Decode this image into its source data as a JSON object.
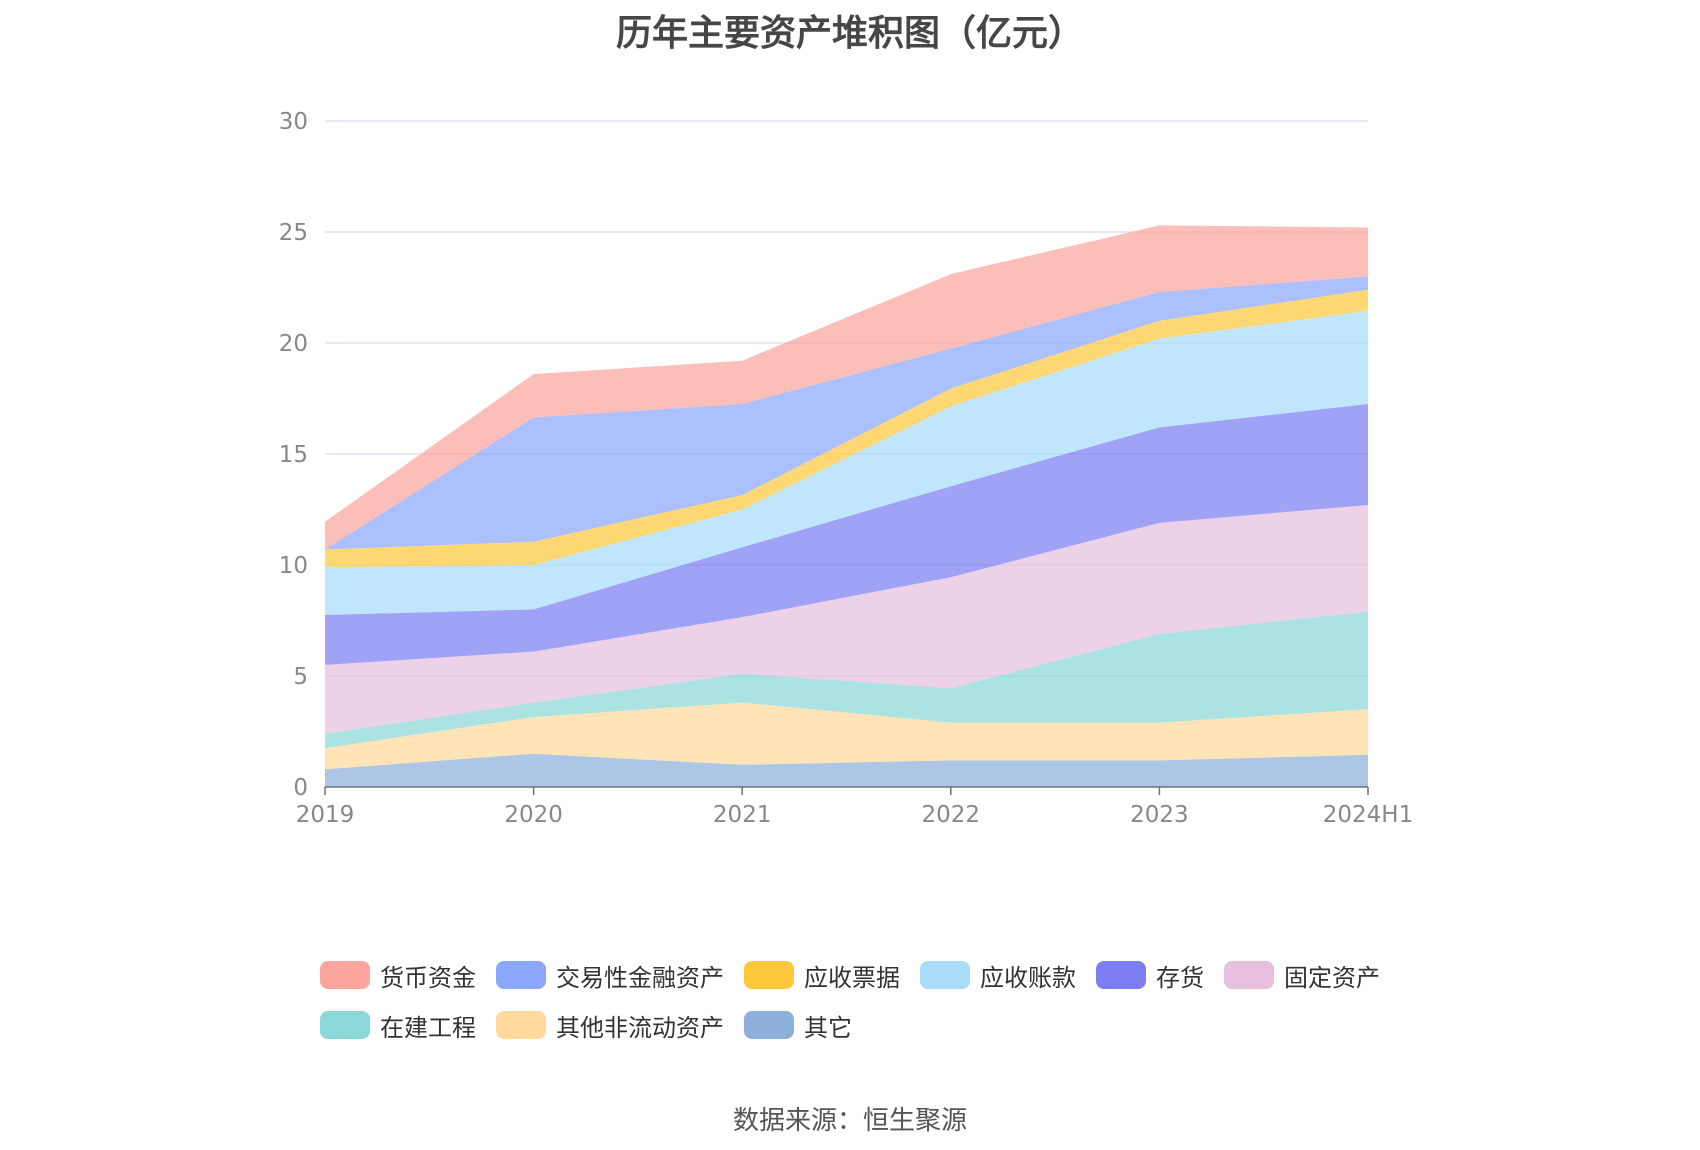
{
  "source": "数据来源：恒生聚源",
  "chart_data": {
    "type": "area",
    "stacked": true,
    "title": "历年主要资产堆积图（亿元）",
    "xlabel": "",
    "ylabel": "",
    "ylim": [
      0,
      30
    ],
    "yticks": [
      "0",
      "5",
      "10",
      "15",
      "20",
      "25",
      "30"
    ],
    "grid": true,
    "legend_position": "bottom",
    "categories": [
      "2019",
      "2020",
      "2021",
      "2022",
      "2023",
      "2024H1"
    ],
    "series": [
      {
        "name": "其它",
        "color": "#8fb0dc",
        "values": [
          0.8,
          1.5,
          1.0,
          1.2,
          1.2,
          1.45
        ]
      },
      {
        "name": "其他非流动资产",
        "color": "#ffd99b",
        "values": [
          0.95,
          1.65,
          2.8,
          1.7,
          1.7,
          2.05
        ]
      },
      {
        "name": "在建工程",
        "color": "#8ad8d8",
        "values": [
          0.65,
          0.65,
          1.3,
          1.55,
          4.0,
          4.4
        ]
      },
      {
        "name": "固定资产",
        "color": "#e6bfdd",
        "values": [
          3.1,
          2.3,
          2.55,
          5.0,
          5.0,
          4.8
        ]
      },
      {
        "name": "存货",
        "color": "#7c7ef2",
        "values": [
          2.25,
          1.9,
          3.15,
          4.1,
          4.3,
          4.55
        ]
      },
      {
        "name": "应收账款",
        "color": "#a8dcf9",
        "values": [
          2.15,
          2.0,
          1.7,
          3.6,
          4.0,
          4.2
        ]
      },
      {
        "name": "应收票据",
        "color": "#ffc83d",
        "values": [
          0.8,
          1.05,
          0.65,
          0.8,
          0.8,
          0.95
        ]
      },
      {
        "name": "交易性金融资产",
        "color": "#8ba7fc",
        "values": [
          0.0,
          5.6,
          4.1,
          1.8,
          1.3,
          0.6
        ]
      },
      {
        "name": "货币资金",
        "color": "#fba59c",
        "values": [
          1.25,
          1.95,
          1.95,
          3.35,
          3.0,
          2.2
        ]
      }
    ]
  }
}
